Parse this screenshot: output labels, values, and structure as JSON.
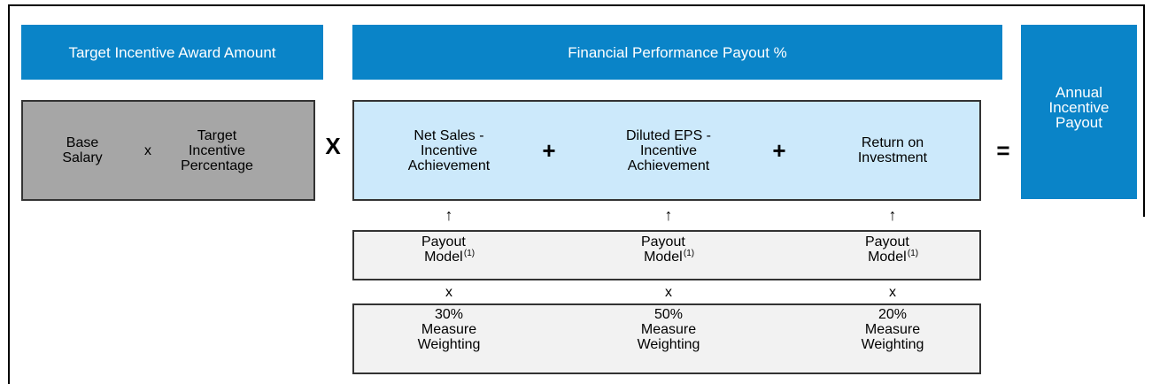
{
  "target_incentive": {
    "title": "Target Incentive Award Amount",
    "base": "Base Salary",
    "op": "x",
    "target": "Target Incentive Percentage"
  },
  "multiply": "X",
  "financial": {
    "title": "Financial Performance Payout %",
    "operators": [
      "+",
      "+"
    ],
    "measures": [
      {
        "name": "Net Sales - Incentive Achievement",
        "arrow": "↑",
        "model": "Payout Model",
        "note": "(1)",
        "op": "x",
        "weight": "30%",
        "weight_label": "Measure Weighting"
      },
      {
        "name": "Diluted EPS - Incentive Achievement",
        "arrow": "↑",
        "model": "Payout Model",
        "note": "(1)",
        "op": "x",
        "weight": "50%",
        "weight_label": "Measure Weighting"
      },
      {
        "name": "Return on Investment",
        "arrow": "↑",
        "model": "Payout Model",
        "note": "(1)",
        "op": "x",
        "weight": "20%",
        "weight_label": "Measure Weighting"
      }
    ]
  },
  "equals": "=",
  "result": "Annual Incentive Payout"
}
